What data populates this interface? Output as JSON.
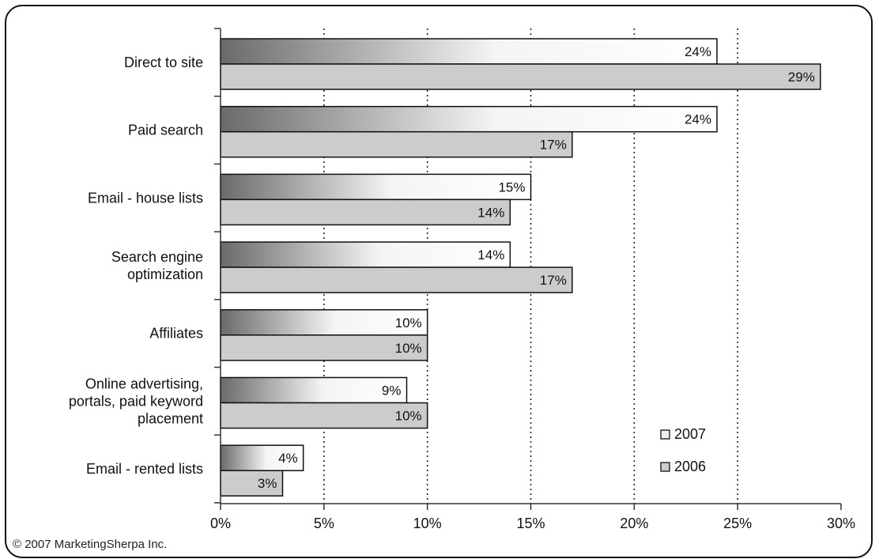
{
  "chart_data": {
    "type": "bar",
    "orientation": "horizontal",
    "title": "",
    "xlabel": "",
    "ylabel": "",
    "xlim": [
      0,
      30
    ],
    "x_ticks": [
      0,
      5,
      10,
      15,
      20,
      25,
      30
    ],
    "x_tick_labels": [
      "0%",
      "5%",
      "10%",
      "15%",
      "20%",
      "25%",
      "30%"
    ],
    "grid": "vertical-dotted",
    "legend_position": "bottom-right",
    "categories": [
      [
        "Direct to site"
      ],
      [
        "Paid search"
      ],
      [
        "Email - house lists"
      ],
      [
        "Search engine",
        "optimization"
      ],
      [
        "Affiliates"
      ],
      [
        "Online advertising,",
        "portals, paid keyword",
        "placement"
      ],
      [
        "Email - rented lists"
      ]
    ],
    "series": [
      {
        "name": "2007",
        "values": [
          24,
          24,
          15,
          14,
          10,
          9,
          4
        ],
        "labels": [
          "24%",
          "24%",
          "15%",
          "14%",
          "10%",
          "9%",
          "4%"
        ],
        "fill": "gradient-gray"
      },
      {
        "name": "2006",
        "values": [
          29,
          17,
          14,
          17,
          10,
          10,
          3
        ],
        "labels": [
          "29%",
          "17%",
          "14%",
          "17%",
          "10%",
          "10%",
          "3%"
        ],
        "fill": "#cccccc"
      }
    ]
  },
  "footer": {
    "copyright": "© 2007 MarketingSherpa Inc."
  }
}
